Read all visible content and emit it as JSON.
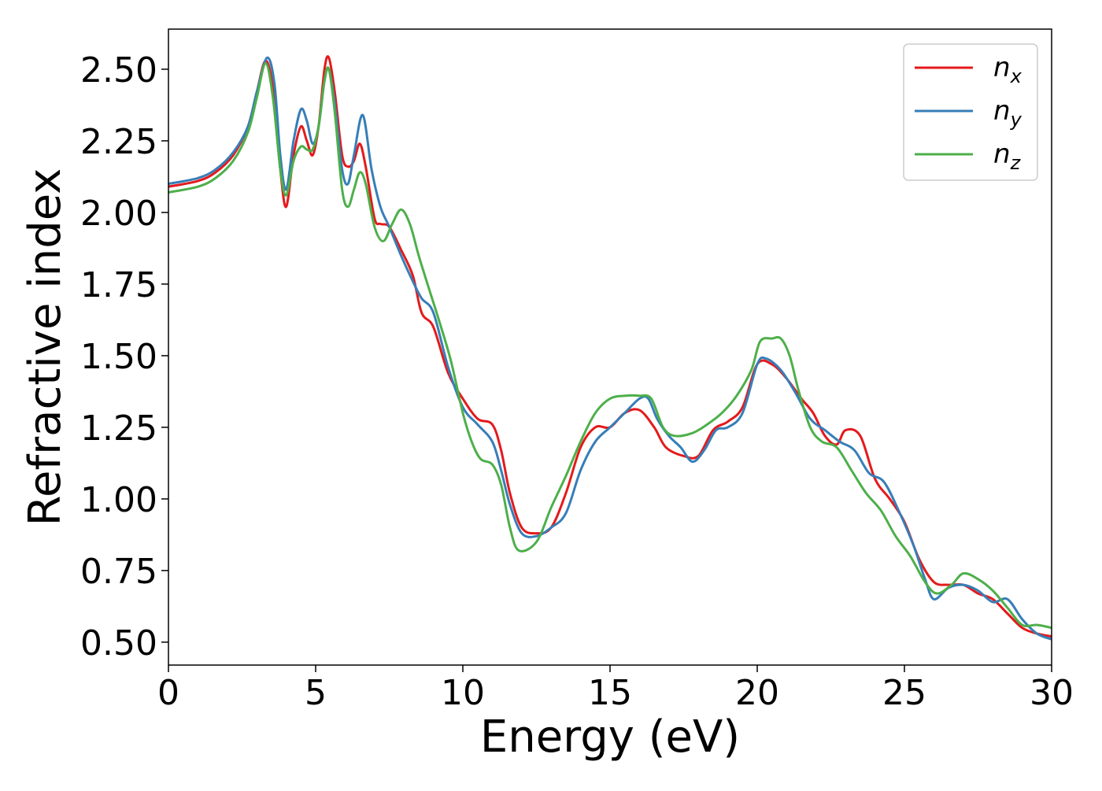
{
  "chart_data": {
    "type": "line",
    "xlabel": "Energy (eV)",
    "ylabel": "Refractive index",
    "xlim": [
      0,
      30
    ],
    "ylim": [
      0.42,
      2.64
    ],
    "xticks": [
      0,
      5,
      10,
      15,
      20,
      25,
      30
    ],
    "yticks": [
      0.5,
      0.75,
      1.0,
      1.25,
      1.5,
      1.75,
      2.0,
      2.25,
      2.5
    ],
    "ytick_labels": [
      "0.50",
      "0.75",
      "1.00",
      "1.25",
      "1.50",
      "1.75",
      "2.00",
      "2.25",
      "2.50"
    ],
    "grid": false,
    "legend_position": "top-right",
    "series": [
      {
        "name": "n_x",
        "label_main": "n",
        "label_sub": "x",
        "color": "#e41a1c",
        "points": [
          [
            0,
            2.09
          ],
          [
            1.0,
            2.11
          ],
          [
            1.6,
            2.14
          ],
          [
            2.2,
            2.2
          ],
          [
            2.7,
            2.3
          ],
          [
            3.0,
            2.42
          ],
          [
            3.3,
            2.53
          ],
          [
            3.55,
            2.43
          ],
          [
            3.8,
            2.15
          ],
          [
            4.0,
            2.02
          ],
          [
            4.25,
            2.2
          ],
          [
            4.5,
            2.3
          ],
          [
            4.7,
            2.25
          ],
          [
            4.9,
            2.2
          ],
          [
            5.1,
            2.3
          ],
          [
            5.3,
            2.5
          ],
          [
            5.45,
            2.54
          ],
          [
            5.65,
            2.42
          ],
          [
            5.9,
            2.2
          ],
          [
            6.1,
            2.16
          ],
          [
            6.3,
            2.18
          ],
          [
            6.5,
            2.24
          ],
          [
            6.7,
            2.16
          ],
          [
            7.0,
            1.98
          ],
          [
            7.2,
            1.96
          ],
          [
            7.5,
            1.95
          ],
          [
            7.9,
            1.87
          ],
          [
            8.3,
            1.78
          ],
          [
            8.6,
            1.65
          ],
          [
            9.0,
            1.6
          ],
          [
            9.5,
            1.44
          ],
          [
            10.0,
            1.35
          ],
          [
            10.5,
            1.28
          ],
          [
            11.0,
            1.26
          ],
          [
            11.3,
            1.17
          ],
          [
            11.6,
            1.02
          ],
          [
            12.0,
            0.9
          ],
          [
            12.5,
            0.88
          ],
          [
            13.0,
            0.9
          ],
          [
            13.5,
            1.02
          ],
          [
            14.0,
            1.18
          ],
          [
            14.5,
            1.25
          ],
          [
            15.0,
            1.25
          ],
          [
            15.5,
            1.3
          ],
          [
            16.0,
            1.31
          ],
          [
            16.5,
            1.25
          ],
          [
            16.9,
            1.18
          ],
          [
            17.5,
            1.15
          ],
          [
            18.0,
            1.15
          ],
          [
            18.5,
            1.24
          ],
          [
            19.0,
            1.27
          ],
          [
            19.5,
            1.32
          ],
          [
            20.0,
            1.47
          ],
          [
            20.5,
            1.47
          ],
          [
            21.0,
            1.42
          ],
          [
            21.5,
            1.35
          ],
          [
            21.9,
            1.3
          ],
          [
            22.3,
            1.22
          ],
          [
            22.7,
            1.19
          ],
          [
            23.0,
            1.24
          ],
          [
            23.5,
            1.22
          ],
          [
            24.0,
            1.07
          ],
          [
            24.5,
            1.0
          ],
          [
            25.0,
            0.92
          ],
          [
            25.5,
            0.79
          ],
          [
            26.0,
            0.71
          ],
          [
            26.5,
            0.7
          ],
          [
            27.0,
            0.7
          ],
          [
            27.5,
            0.67
          ],
          [
            28.0,
            0.65
          ],
          [
            28.5,
            0.6
          ],
          [
            29.0,
            0.55
          ],
          [
            29.5,
            0.53
          ],
          [
            30.0,
            0.52
          ]
        ]
      },
      {
        "name": "n_y",
        "label_main": "n",
        "label_sub": "y",
        "color": "#377eb8",
        "points": [
          [
            0,
            2.1
          ],
          [
            1.0,
            2.12
          ],
          [
            1.6,
            2.15
          ],
          [
            2.2,
            2.21
          ],
          [
            2.7,
            2.3
          ],
          [
            3.0,
            2.42
          ],
          [
            3.35,
            2.54
          ],
          [
            3.6,
            2.45
          ],
          [
            3.8,
            2.2
          ],
          [
            4.0,
            2.08
          ],
          [
            4.25,
            2.25
          ],
          [
            4.5,
            2.36
          ],
          [
            4.7,
            2.32
          ],
          [
            4.9,
            2.24
          ],
          [
            5.1,
            2.3
          ],
          [
            5.3,
            2.46
          ],
          [
            5.45,
            2.5
          ],
          [
            5.65,
            2.38
          ],
          [
            5.9,
            2.15
          ],
          [
            6.1,
            2.1
          ],
          [
            6.3,
            2.2
          ],
          [
            6.6,
            2.34
          ],
          [
            6.9,
            2.15
          ],
          [
            7.2,
            2.02
          ],
          [
            7.5,
            1.95
          ],
          [
            7.9,
            1.85
          ],
          [
            8.3,
            1.76
          ],
          [
            8.6,
            1.7
          ],
          [
            9.0,
            1.65
          ],
          [
            9.5,
            1.46
          ],
          [
            10.0,
            1.32
          ],
          [
            10.5,
            1.26
          ],
          [
            11.0,
            1.2
          ],
          [
            11.3,
            1.1
          ],
          [
            11.6,
            0.98
          ],
          [
            12.0,
            0.88
          ],
          [
            12.5,
            0.87
          ],
          [
            13.0,
            0.9
          ],
          [
            13.5,
            0.95
          ],
          [
            14.0,
            1.1
          ],
          [
            14.5,
            1.2
          ],
          [
            15.0,
            1.25
          ],
          [
            15.5,
            1.3
          ],
          [
            16.0,
            1.35
          ],
          [
            16.3,
            1.35
          ],
          [
            16.6,
            1.28
          ],
          [
            17.0,
            1.22
          ],
          [
            17.4,
            1.18
          ],
          [
            17.8,
            1.13
          ],
          [
            18.2,
            1.17
          ],
          [
            18.6,
            1.24
          ],
          [
            19.0,
            1.25
          ],
          [
            19.5,
            1.3
          ],
          [
            20.0,
            1.47
          ],
          [
            20.3,
            1.49
          ],
          [
            20.8,
            1.45
          ],
          [
            21.3,
            1.37
          ],
          [
            21.8,
            1.28
          ],
          [
            22.3,
            1.24
          ],
          [
            22.8,
            1.2
          ],
          [
            23.3,
            1.17
          ],
          [
            23.8,
            1.09
          ],
          [
            24.3,
            1.06
          ],
          [
            24.8,
            0.96
          ],
          [
            25.3,
            0.84
          ],
          [
            25.7,
            0.72
          ],
          [
            26.0,
            0.65
          ],
          [
            26.5,
            0.69
          ],
          [
            27.0,
            0.7
          ],
          [
            27.5,
            0.68
          ],
          [
            28.0,
            0.64
          ],
          [
            28.5,
            0.65
          ],
          [
            29.0,
            0.58
          ],
          [
            29.5,
            0.53
          ],
          [
            30.0,
            0.51
          ]
        ]
      },
      {
        "name": "n_z",
        "label_main": "n",
        "label_sub": "z",
        "color": "#4daf4a",
        "points": [
          [
            0,
            2.07
          ],
          [
            1.0,
            2.09
          ],
          [
            1.6,
            2.12
          ],
          [
            2.2,
            2.18
          ],
          [
            2.7,
            2.28
          ],
          [
            3.0,
            2.4
          ],
          [
            3.3,
            2.52
          ],
          [
            3.55,
            2.4
          ],
          [
            3.8,
            2.15
          ],
          [
            4.0,
            2.06
          ],
          [
            4.25,
            2.18
          ],
          [
            4.5,
            2.23
          ],
          [
            4.7,
            2.22
          ],
          [
            4.9,
            2.22
          ],
          [
            5.1,
            2.3
          ],
          [
            5.3,
            2.46
          ],
          [
            5.45,
            2.5
          ],
          [
            5.65,
            2.35
          ],
          [
            5.9,
            2.08
          ],
          [
            6.1,
            2.02
          ],
          [
            6.3,
            2.08
          ],
          [
            6.5,
            2.14
          ],
          [
            6.7,
            2.1
          ],
          [
            7.0,
            1.95
          ],
          [
            7.3,
            1.9
          ],
          [
            7.6,
            1.96
          ],
          [
            7.9,
            2.01
          ],
          [
            8.2,
            1.96
          ],
          [
            8.5,
            1.85
          ],
          [
            8.8,
            1.75
          ],
          [
            9.2,
            1.62
          ],
          [
            9.6,
            1.48
          ],
          [
            10.0,
            1.3
          ],
          [
            10.3,
            1.2
          ],
          [
            10.6,
            1.14
          ],
          [
            11.0,
            1.12
          ],
          [
            11.3,
            1.05
          ],
          [
            11.6,
            0.9
          ],
          [
            11.9,
            0.82
          ],
          [
            12.5,
            0.85
          ],
          [
            13.0,
            0.97
          ],
          [
            13.5,
            1.08
          ],
          [
            14.0,
            1.2
          ],
          [
            14.5,
            1.3
          ],
          [
            15.0,
            1.35
          ],
          [
            15.5,
            1.36
          ],
          [
            16.0,
            1.36
          ],
          [
            16.4,
            1.35
          ],
          [
            16.8,
            1.25
          ],
          [
            17.2,
            1.22
          ],
          [
            17.8,
            1.23
          ],
          [
            18.3,
            1.26
          ],
          [
            18.8,
            1.3
          ],
          [
            19.3,
            1.36
          ],
          [
            19.8,
            1.45
          ],
          [
            20.1,
            1.55
          ],
          [
            20.5,
            1.56
          ],
          [
            20.8,
            1.56
          ],
          [
            21.1,
            1.5
          ],
          [
            21.4,
            1.38
          ],
          [
            21.8,
            1.25
          ],
          [
            22.2,
            1.2
          ],
          [
            22.7,
            1.18
          ],
          [
            23.2,
            1.1
          ],
          [
            23.7,
            1.02
          ],
          [
            24.2,
            0.96
          ],
          [
            24.7,
            0.87
          ],
          [
            25.2,
            0.8
          ],
          [
            25.7,
            0.71
          ],
          [
            26.1,
            0.67
          ],
          [
            26.6,
            0.7
          ],
          [
            27.0,
            0.74
          ],
          [
            27.5,
            0.72
          ],
          [
            28.0,
            0.68
          ],
          [
            28.5,
            0.62
          ],
          [
            29.0,
            0.56
          ],
          [
            29.5,
            0.56
          ],
          [
            30.0,
            0.55
          ]
        ]
      }
    ]
  }
}
